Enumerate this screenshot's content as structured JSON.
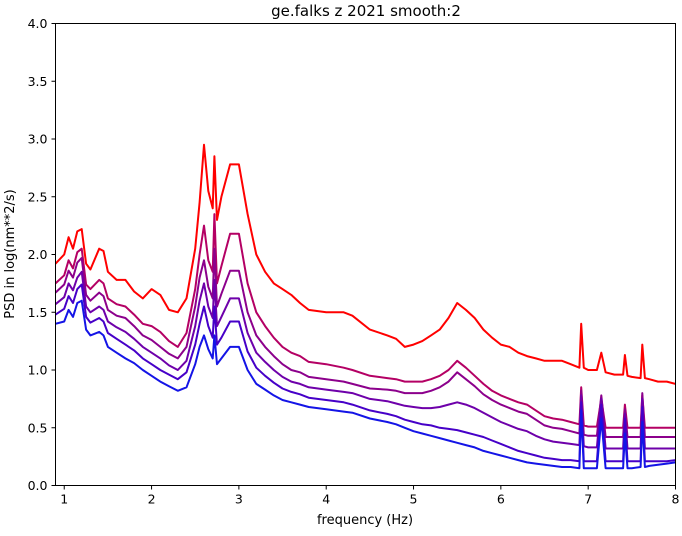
{
  "chart_data": {
    "type": "line",
    "title": "ge.falks z 2021 smooth:2",
    "xlabel": "frequency (Hz)",
    "ylabel": "PSD in log(nm**2/s)",
    "xlim": [
      0.9,
      8.0
    ],
    "ylim": [
      0.0,
      4.0
    ],
    "xticks": [
      "1",
      "2",
      "3",
      "4",
      "5",
      "6",
      "7",
      "8"
    ],
    "yticks": [
      "0.0",
      "0.5",
      "1.0",
      "1.5",
      "2.0",
      "2.5",
      "3.0",
      "3.5",
      "4.0"
    ],
    "grid": false,
    "legend": "none",
    "series": [
      {
        "color": "#ff0000",
        "x": [
          0.9,
          1.0,
          1.05,
          1.1,
          1.15,
          1.2,
          1.25,
          1.3,
          1.4,
          1.45,
          1.5,
          1.6,
          1.7,
          1.8,
          1.9,
          2.0,
          2.1,
          2.2,
          2.3,
          2.4,
          2.5,
          2.55,
          2.6,
          2.65,
          2.7,
          2.72,
          2.75,
          2.8,
          2.9,
          3.0,
          3.1,
          3.2,
          3.3,
          3.4,
          3.5,
          3.6,
          3.7,
          3.8,
          4.0,
          4.2,
          4.3,
          4.5,
          4.7,
          4.8,
          4.9,
          5.0,
          5.1,
          5.2,
          5.3,
          5.4,
          5.5,
          5.6,
          5.7,
          5.8,
          5.9,
          6.0,
          6.1,
          6.2,
          6.3,
          6.4,
          6.5,
          6.6,
          6.7,
          6.8,
          6.9,
          6.92,
          6.95,
          7.0,
          7.1,
          7.15,
          7.2,
          7.3,
          7.4,
          7.42,
          7.45,
          7.5,
          7.6,
          7.62,
          7.65,
          7.7,
          7.8,
          7.9,
          8.0
        ],
        "y": [
          1.92,
          2.0,
          2.15,
          2.05,
          2.2,
          2.22,
          1.92,
          1.87,
          2.05,
          2.03,
          1.85,
          1.78,
          1.78,
          1.68,
          1.62,
          1.7,
          1.65,
          1.52,
          1.5,
          1.62,
          2.05,
          2.45,
          2.95,
          2.55,
          2.4,
          2.85,
          2.3,
          2.5,
          2.78,
          2.78,
          2.35,
          2.0,
          1.85,
          1.75,
          1.7,
          1.65,
          1.58,
          1.52,
          1.5,
          1.5,
          1.47,
          1.35,
          1.3,
          1.27,
          1.2,
          1.22,
          1.25,
          1.3,
          1.35,
          1.45,
          1.58,
          1.52,
          1.45,
          1.35,
          1.28,
          1.22,
          1.2,
          1.15,
          1.12,
          1.1,
          1.08,
          1.08,
          1.08,
          1.05,
          1.02,
          1.4,
          1.02,
          1.0,
          1.0,
          1.15,
          0.98,
          0.96,
          0.96,
          1.13,
          0.95,
          0.94,
          0.93,
          1.22,
          0.93,
          0.92,
          0.9,
          0.9,
          0.88
        ]
      },
      {
        "color": "#b40064",
        "x": [
          0.9,
          1.0,
          1.05,
          1.1,
          1.15,
          1.2,
          1.25,
          1.3,
          1.4,
          1.45,
          1.5,
          1.6,
          1.7,
          1.8,
          1.9,
          2.0,
          2.1,
          2.2,
          2.3,
          2.4,
          2.5,
          2.55,
          2.6,
          2.65,
          2.7,
          2.72,
          2.75,
          2.8,
          2.9,
          3.0,
          3.1,
          3.2,
          3.3,
          3.4,
          3.5,
          3.6,
          3.7,
          3.8,
          4.0,
          4.2,
          4.3,
          4.5,
          4.7,
          4.8,
          4.9,
          5.0,
          5.1,
          5.2,
          5.3,
          5.4,
          5.5,
          5.6,
          5.7,
          5.8,
          5.9,
          6.0,
          6.1,
          6.2,
          6.3,
          6.4,
          6.5,
          6.6,
          6.7,
          6.8,
          6.9,
          6.92,
          6.95,
          7.0,
          7.1,
          7.15,
          7.2,
          7.3,
          7.4,
          7.42,
          7.45,
          7.5,
          7.6,
          7.62,
          7.65,
          7.7,
          7.8,
          7.9,
          8.0
        ],
        "y": [
          1.75,
          1.82,
          1.95,
          1.88,
          2.02,
          2.05,
          1.74,
          1.7,
          1.78,
          1.75,
          1.62,
          1.57,
          1.55,
          1.48,
          1.4,
          1.38,
          1.33,
          1.25,
          1.2,
          1.32,
          1.7,
          2.0,
          2.25,
          1.95,
          1.85,
          2.35,
          1.75,
          1.9,
          2.18,
          2.18,
          1.75,
          1.5,
          1.38,
          1.28,
          1.2,
          1.15,
          1.12,
          1.07,
          1.05,
          1.02,
          1.0,
          0.95,
          0.93,
          0.92,
          0.9,
          0.9,
          0.9,
          0.92,
          0.95,
          1.0,
          1.08,
          1.02,
          0.95,
          0.88,
          0.82,
          0.78,
          0.75,
          0.72,
          0.7,
          0.65,
          0.6,
          0.58,
          0.57,
          0.55,
          0.53,
          0.85,
          0.52,
          0.51,
          0.51,
          0.75,
          0.5,
          0.5,
          0.5,
          0.7,
          0.5,
          0.5,
          0.5,
          0.78,
          0.5,
          0.5,
          0.5,
          0.5,
          0.5
        ]
      },
      {
        "color": "#8c008c",
        "x": [
          0.9,
          1.0,
          1.05,
          1.1,
          1.15,
          1.2,
          1.25,
          1.3,
          1.4,
          1.45,
          1.5,
          1.6,
          1.7,
          1.8,
          1.9,
          2.0,
          2.1,
          2.2,
          2.3,
          2.4,
          2.5,
          2.55,
          2.6,
          2.65,
          2.7,
          2.72,
          2.75,
          2.8,
          2.9,
          3.0,
          3.1,
          3.2,
          3.3,
          3.4,
          3.5,
          3.6,
          3.7,
          3.8,
          4.0,
          4.2,
          4.3,
          4.5,
          4.7,
          4.8,
          4.9,
          5.0,
          5.1,
          5.2,
          5.3,
          5.4,
          5.5,
          5.6,
          5.7,
          5.8,
          5.9,
          6.0,
          6.1,
          6.2,
          6.3,
          6.4,
          6.5,
          6.6,
          6.7,
          6.8,
          6.9,
          6.92,
          6.95,
          7.0,
          7.1,
          7.15,
          7.2,
          7.3,
          7.4,
          7.42,
          7.45,
          7.5,
          7.6,
          7.62,
          7.65,
          7.7,
          7.8,
          7.9,
          8.0
        ],
        "y": [
          1.67,
          1.74,
          1.86,
          1.8,
          1.93,
          1.97,
          1.65,
          1.6,
          1.67,
          1.64,
          1.52,
          1.47,
          1.45,
          1.38,
          1.3,
          1.26,
          1.2,
          1.14,
          1.1,
          1.2,
          1.55,
          1.8,
          1.95,
          1.72,
          1.62,
          2.05,
          1.55,
          1.66,
          1.86,
          1.86,
          1.5,
          1.3,
          1.2,
          1.12,
          1.05,
          1.0,
          0.98,
          0.94,
          0.92,
          0.9,
          0.88,
          0.84,
          0.83,
          0.82,
          0.8,
          0.8,
          0.8,
          0.82,
          0.85,
          0.9,
          0.98,
          0.92,
          0.86,
          0.79,
          0.74,
          0.7,
          0.67,
          0.64,
          0.62,
          0.57,
          0.52,
          0.5,
          0.49,
          0.47,
          0.45,
          0.82,
          0.44,
          0.43,
          0.43,
          0.78,
          0.42,
          0.42,
          0.42,
          0.66,
          0.42,
          0.42,
          0.42,
          0.8,
          0.42,
          0.42,
          0.42,
          0.42,
          0.42
        ]
      },
      {
        "color": "#6e00aa",
        "x": [
          0.9,
          1.0,
          1.05,
          1.1,
          1.15,
          1.2,
          1.25,
          1.3,
          1.4,
          1.45,
          1.5,
          1.6,
          1.7,
          1.8,
          1.9,
          2.0,
          2.1,
          2.2,
          2.3,
          2.4,
          2.5,
          2.55,
          2.6,
          2.65,
          2.7,
          2.72,
          2.75,
          2.8,
          2.9,
          3.0,
          3.1,
          3.2,
          3.3,
          3.4,
          3.5,
          3.6,
          3.7,
          3.8,
          4.0,
          4.2,
          4.3,
          4.5,
          4.7,
          4.8,
          4.9,
          5.0,
          5.1,
          5.2,
          5.3,
          5.4,
          5.5,
          5.6,
          5.7,
          5.8,
          5.9,
          6.0,
          6.1,
          6.2,
          6.3,
          6.4,
          6.5,
          6.6,
          6.7,
          6.8,
          6.9,
          6.92,
          6.95,
          7.0,
          7.1,
          7.15,
          7.2,
          7.3,
          7.4,
          7.42,
          7.45,
          7.5,
          7.6,
          7.62,
          7.65,
          7.7,
          7.8,
          7.9,
          8.0
        ],
        "y": [
          1.57,
          1.63,
          1.75,
          1.69,
          1.8,
          1.85,
          1.55,
          1.5,
          1.55,
          1.52,
          1.42,
          1.37,
          1.33,
          1.27,
          1.2,
          1.15,
          1.1,
          1.04,
          1.0,
          1.08,
          1.38,
          1.6,
          1.75,
          1.55,
          1.45,
          1.78,
          1.38,
          1.46,
          1.62,
          1.62,
          1.32,
          1.15,
          1.07,
          1.0,
          0.94,
          0.9,
          0.88,
          0.85,
          0.83,
          0.81,
          0.8,
          0.75,
          0.73,
          0.71,
          0.69,
          0.68,
          0.67,
          0.67,
          0.68,
          0.7,
          0.72,
          0.7,
          0.67,
          0.63,
          0.59,
          0.55,
          0.52,
          0.49,
          0.47,
          0.43,
          0.4,
          0.38,
          0.37,
          0.36,
          0.35,
          0.78,
          0.34,
          0.33,
          0.33,
          0.75,
          0.32,
          0.32,
          0.32,
          0.62,
          0.32,
          0.32,
          0.32,
          0.75,
          0.32,
          0.32,
          0.32,
          0.32,
          0.32
        ]
      },
      {
        "color": "#4600c8",
        "x": [
          0.9,
          1.0,
          1.05,
          1.1,
          1.15,
          1.2,
          1.25,
          1.3,
          1.4,
          1.45,
          1.5,
          1.6,
          1.7,
          1.8,
          1.9,
          2.0,
          2.1,
          2.2,
          2.3,
          2.4,
          2.5,
          2.55,
          2.6,
          2.65,
          2.7,
          2.72,
          2.75,
          2.8,
          2.9,
          3.0,
          3.1,
          3.2,
          3.3,
          3.4,
          3.5,
          3.6,
          3.7,
          3.8,
          4.0,
          4.2,
          4.3,
          4.5,
          4.7,
          4.8,
          4.9,
          5.0,
          5.1,
          5.2,
          5.3,
          5.4,
          5.5,
          5.6,
          5.7,
          5.8,
          5.9,
          6.0,
          6.1,
          6.2,
          6.3,
          6.4,
          6.5,
          6.6,
          6.7,
          6.8,
          6.9,
          6.92,
          6.95,
          7.0,
          7.1,
          7.15,
          7.2,
          7.3,
          7.4,
          7.42,
          7.45,
          7.5,
          7.6,
          7.62,
          7.65,
          7.7,
          7.8,
          7.9,
          8.0
        ],
        "y": [
          1.48,
          1.53,
          1.64,
          1.58,
          1.7,
          1.74,
          1.46,
          1.41,
          1.45,
          1.42,
          1.32,
          1.27,
          1.22,
          1.17,
          1.1,
          1.05,
          1.0,
          0.96,
          0.92,
          0.98,
          1.22,
          1.4,
          1.55,
          1.38,
          1.28,
          1.55,
          1.22,
          1.28,
          1.42,
          1.42,
          1.16,
          1.02,
          0.95,
          0.89,
          0.84,
          0.81,
          0.79,
          0.76,
          0.74,
          0.72,
          0.7,
          0.65,
          0.62,
          0.6,
          0.57,
          0.55,
          0.53,
          0.52,
          0.5,
          0.49,
          0.48,
          0.46,
          0.44,
          0.42,
          0.39,
          0.36,
          0.33,
          0.3,
          0.28,
          0.26,
          0.24,
          0.23,
          0.22,
          0.22,
          0.21,
          0.72,
          0.21,
          0.21,
          0.21,
          0.7,
          0.21,
          0.21,
          0.21,
          0.58,
          0.21,
          0.21,
          0.21,
          0.68,
          0.21,
          0.21,
          0.21,
          0.21,
          0.22
        ]
      },
      {
        "color": "#1414e6",
        "x": [
          0.9,
          1.0,
          1.05,
          1.1,
          1.15,
          1.2,
          1.25,
          1.3,
          1.4,
          1.45,
          1.5,
          1.6,
          1.7,
          1.8,
          1.9,
          2.0,
          2.1,
          2.2,
          2.3,
          2.4,
          2.5,
          2.55,
          2.6,
          2.65,
          2.7,
          2.72,
          2.75,
          2.8,
          2.9,
          3.0,
          3.1,
          3.2,
          3.3,
          3.4,
          3.5,
          3.6,
          3.7,
          3.8,
          4.0,
          4.2,
          4.3,
          4.5,
          4.7,
          4.8,
          4.9,
          5.0,
          5.1,
          5.2,
          5.3,
          5.4,
          5.5,
          5.6,
          5.7,
          5.8,
          5.9,
          6.0,
          6.1,
          6.2,
          6.3,
          6.4,
          6.5,
          6.6,
          6.7,
          6.8,
          6.9,
          6.92,
          6.95,
          7.0,
          7.1,
          7.15,
          7.2,
          7.3,
          7.4,
          7.42,
          7.45,
          7.5,
          7.6,
          7.62,
          7.65,
          7.7,
          7.8,
          7.9,
          8.0
        ],
        "y": [
          1.4,
          1.42,
          1.52,
          1.46,
          1.58,
          1.6,
          1.35,
          1.3,
          1.33,
          1.3,
          1.2,
          1.15,
          1.1,
          1.06,
          1.0,
          0.95,
          0.9,
          0.86,
          0.82,
          0.85,
          1.05,
          1.2,
          1.3,
          1.18,
          1.1,
          1.3,
          1.05,
          1.1,
          1.2,
          1.2,
          1.0,
          0.88,
          0.83,
          0.78,
          0.74,
          0.72,
          0.7,
          0.68,
          0.66,
          0.64,
          0.63,
          0.58,
          0.55,
          0.53,
          0.5,
          0.47,
          0.45,
          0.43,
          0.41,
          0.39,
          0.37,
          0.35,
          0.33,
          0.3,
          0.28,
          0.26,
          0.24,
          0.22,
          0.2,
          0.19,
          0.18,
          0.17,
          0.16,
          0.16,
          0.15,
          0.65,
          0.15,
          0.15,
          0.15,
          0.58,
          0.15,
          0.15,
          0.15,
          0.45,
          0.15,
          0.15,
          0.16,
          0.55,
          0.16,
          0.17,
          0.18,
          0.19,
          0.2
        ]
      }
    ]
  }
}
